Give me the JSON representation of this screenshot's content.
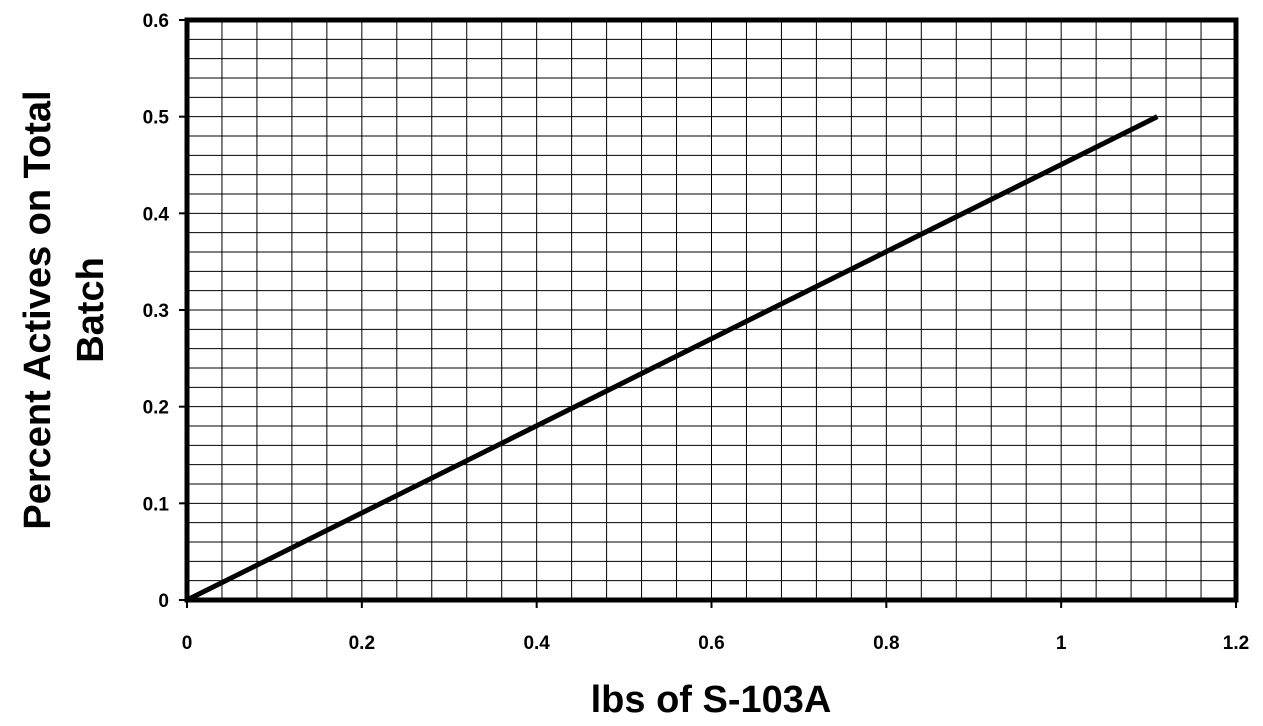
{
  "chart_data": {
    "type": "line",
    "title": "",
    "xlabel": "lbs of S-103A",
    "ylabel": "Percent Actives on Total Batch",
    "ylabel_lines": [
      "Percent Actives on Total",
      "Batch"
    ],
    "xlim": [
      0,
      1.2
    ],
    "ylim": [
      0,
      0.6
    ],
    "x_ticks": [
      "0",
      "0.2",
      "0.4",
      "0.6",
      "0.8",
      "1",
      "1.2"
    ],
    "y_ticks": [
      "0",
      "0.1",
      "0.2",
      "0.3",
      "0.4",
      "0.5",
      "0.6"
    ],
    "grid": true,
    "legend": "none",
    "series": [
      {
        "x": [
          0,
          1.11
        ],
        "y": [
          0,
          0.5
        ],
        "color": "#000000"
      }
    ]
  }
}
